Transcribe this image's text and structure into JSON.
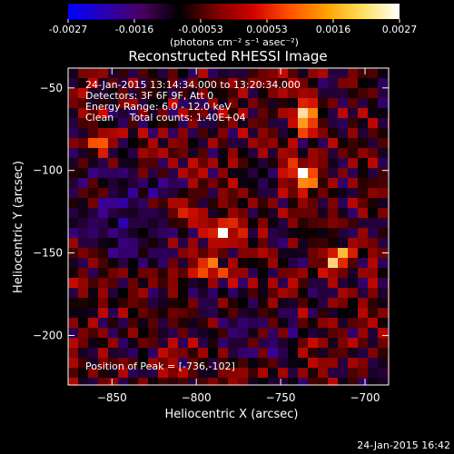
{
  "colorbar": {
    "ticks": [
      "-0.0027",
      "-0.0016",
      "-0.00053",
      "0.00053",
      "0.0016",
      "0.0027"
    ],
    "unit_label": "(photons cm⁻² s⁻¹ asec⁻²)",
    "colors": [
      "#0000ff",
      "#2a00b0",
      "#4a0060",
      "#000000",
      "#7a0000",
      "#d00000",
      "#ff5000",
      "#ffa000",
      "#ffe060",
      "#ffffff"
    ]
  },
  "footer": {
    "timestamp": "24-Jan-2015 16:42"
  },
  "chart_data": {
    "type": "heatmap",
    "title": "Reconstructed RHESSI Image",
    "xlabel": "Heliocentric X (arcsec)",
    "ylabel": "Heliocentric Y (arcsec)",
    "xlim": [
      -876,
      -686
    ],
    "ylim": [
      -230,
      -38
    ],
    "x_ticks": [
      -850,
      -800,
      -750,
      -700
    ],
    "y_ticks": [
      -50,
      -100,
      -150,
      -200
    ],
    "x_tick_labels": [
      "−850",
      "−800",
      "−750",
      "−700"
    ],
    "y_tick_labels": [
      "−50",
      "−100",
      "−150",
      "−200"
    ],
    "color_range": [
      -0.0027,
      0.0027
    ],
    "info_lines": [
      "24-Jan-2015 13:14:34.000 to 13:20:34.000",
      "Detectors: 3F 6F 9F, Att 0",
      "Energy Range: 6.0 - 12.0 keV",
      "Clean     Total counts: 1.40E+04"
    ],
    "peak_label": "Position of Peak = [-736,-102]",
    "peak_position": [
      -736,
      -102
    ],
    "bright_sources": [
      {
        "x": -740,
        "y": -68,
        "level": 1.0
      },
      {
        "x": -740,
        "y": -102,
        "level": 1.0
      },
      {
        "x": -720,
        "y": -152,
        "level": 0.95
      },
      {
        "x": -785,
        "y": -135,
        "level": 0.75
      },
      {
        "x": -795,
        "y": -158,
        "level": 0.85
      },
      {
        "x": -855,
        "y": -82,
        "level": 0.7
      },
      {
        "x": -810,
        "y": -125,
        "level": 0.7
      }
    ]
  }
}
